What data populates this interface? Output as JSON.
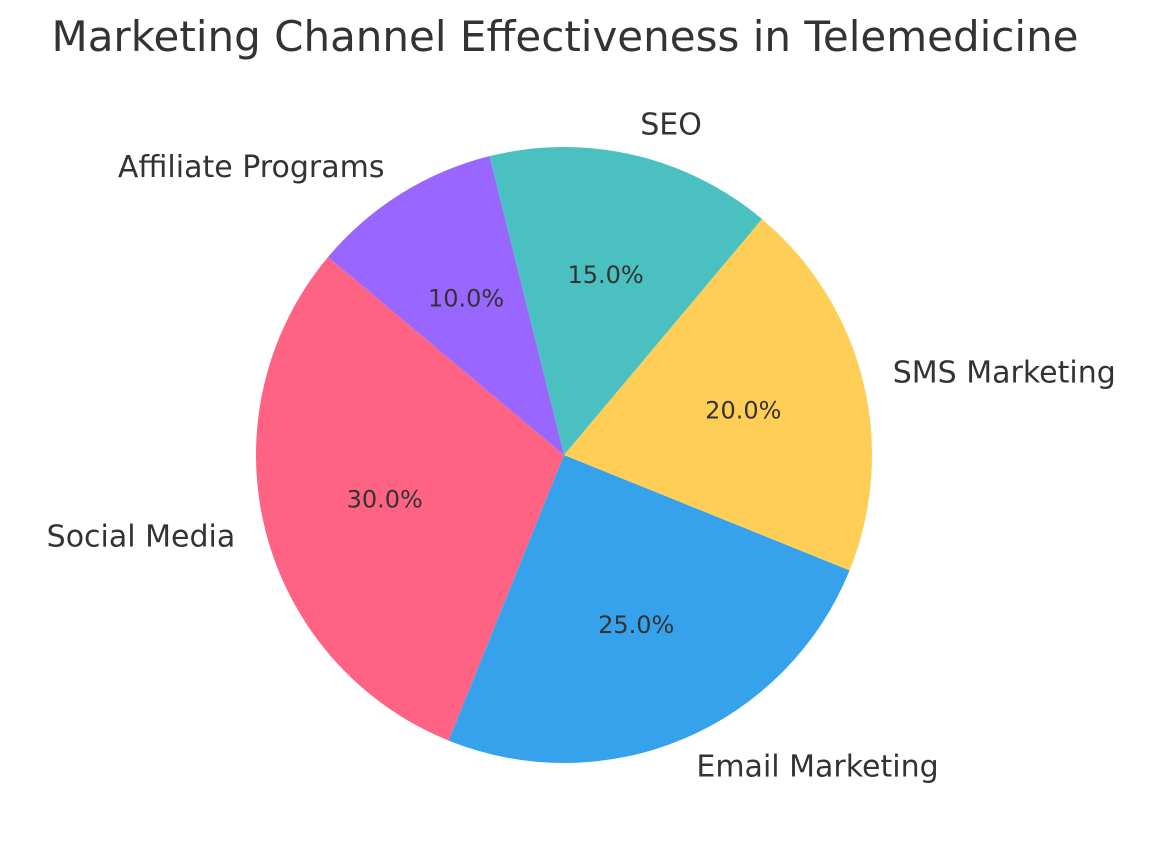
{
  "chart_data": {
    "type": "pie",
    "title": "Marketing Channel Effectiveness in Telemedicine",
    "categories": [
      "Social Media",
      "Email Marketing",
      "SMS Marketing",
      "SEO",
      "Affiliate Programs"
    ],
    "values": [
      30,
      25,
      20,
      15,
      10
    ],
    "percent_labels": [
      "30.0%",
      "25.0%",
      "20.0%",
      "15.0%",
      "10.0%"
    ],
    "colors": [
      "#FF6384",
      "#36A2EB",
      "#FFCE56",
      "#4BC0C0",
      "#9966FF"
    ],
    "start_angle_deg": 140,
    "direction": "counterclockwise",
    "legend": "none"
  }
}
